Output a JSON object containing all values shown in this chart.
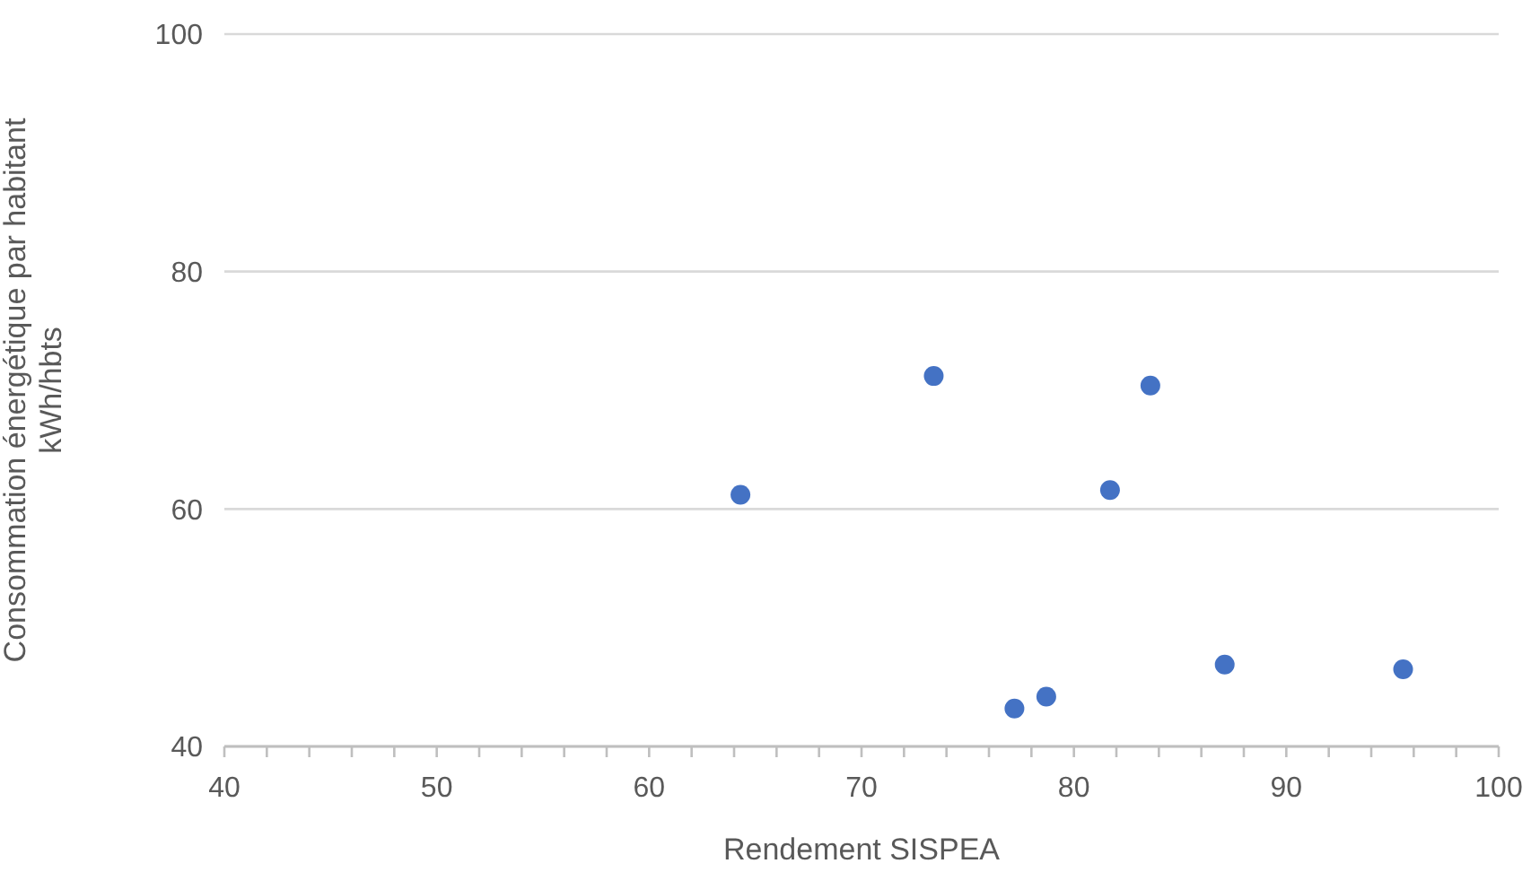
{
  "chart_data": {
    "type": "scatter",
    "xlabel": "Rendement SISPEA",
    "ylabel": "Consommation énergétique par habitant kWh/hbts",
    "x": [
      64.3,
      73.4,
      83.6,
      81.7,
      77.2,
      78.7,
      87.1,
      95.5
    ],
    "values": [
      61.2,
      71.2,
      70.4,
      61.6,
      43.2,
      44.2,
      46.9,
      46.5
    ],
    "color": "#4472c4",
    "marker": "circle",
    "grid": "y",
    "xlim": [
      40,
      100
    ],
    "ylim": [
      40,
      100
    ],
    "xticks": [
      40,
      {
        "value": 42,
        "label": null
      },
      {
        "value": 44,
        "label": null
      },
      {
        "value": 46,
        "label": null
      },
      {
        "value": 48,
        "label": null
      },
      50,
      {
        "value": 52,
        "label": null
      },
      {
        "value": 54,
        "label": null
      },
      {
        "value": 56,
        "label": null
      },
      {
        "value": 58,
        "label": null
      },
      60,
      {
        "value": 62,
        "label": null
      },
      {
        "value": 64,
        "label": null
      },
      {
        "value": 66,
        "label": null
      },
      {
        "value": 68,
        "label": null
      },
      70,
      {
        "value": 72,
        "label": null
      },
      {
        "value": 74,
        "label": null
      },
      {
        "value": 76,
        "label": null
      },
      {
        "value": 78,
        "label": null
      },
      80,
      {
        "value": 82,
        "label": null
      },
      {
        "value": 84,
        "label": null
      },
      {
        "value": 86,
        "label": null
      },
      {
        "value": 88,
        "label": null
      },
      90,
      {
        "value": 92,
        "label": null
      },
      {
        "value": 94,
        "label": null
      },
      {
        "value": 96,
        "label": null
      },
      {
        "value": 98,
        "label": null
      },
      100
    ],
    "yticks": [
      40,
      60,
      80,
      100
    ]
  }
}
